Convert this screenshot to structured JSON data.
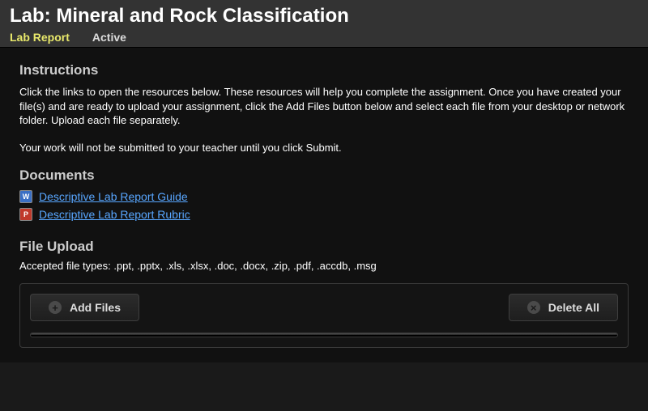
{
  "header": {
    "title": "Lab: Mineral and Rock Classification",
    "tabs": {
      "lab_report": "Lab Report",
      "active_tab": "Active"
    }
  },
  "instructions": {
    "heading": "Instructions",
    "p1": "Click the links to open the resources below. These resources will help you complete the assignment. Once you have created your file(s) and are ready to upload your assignment, click the Add Files button below and select each file from your desktop or network folder. Upload each file separately.",
    "p2": "Your work will not be submitted to your teacher until you click Submit."
  },
  "documents": {
    "heading": "Documents",
    "items": [
      {
        "label": "Descriptive Lab Report Guide",
        "icon": "word"
      },
      {
        "label": "Descriptive Lab Report Rubric",
        "icon": "pdf"
      }
    ]
  },
  "upload": {
    "heading": "File Upload",
    "accepted": "Accepted file types: .ppt, .pptx, .xls, .xlsx, .doc, .docx, .zip, .pdf, .accdb, .msg",
    "add_label": "Add Files",
    "delete_label": "Delete All"
  },
  "colors": {
    "bg": "#111111",
    "header_bg": "#333333",
    "active_tab": "#e9e96b",
    "link": "#58a6ff",
    "section_heading": "#cccccc",
    "border": "#3a3a3a"
  }
}
